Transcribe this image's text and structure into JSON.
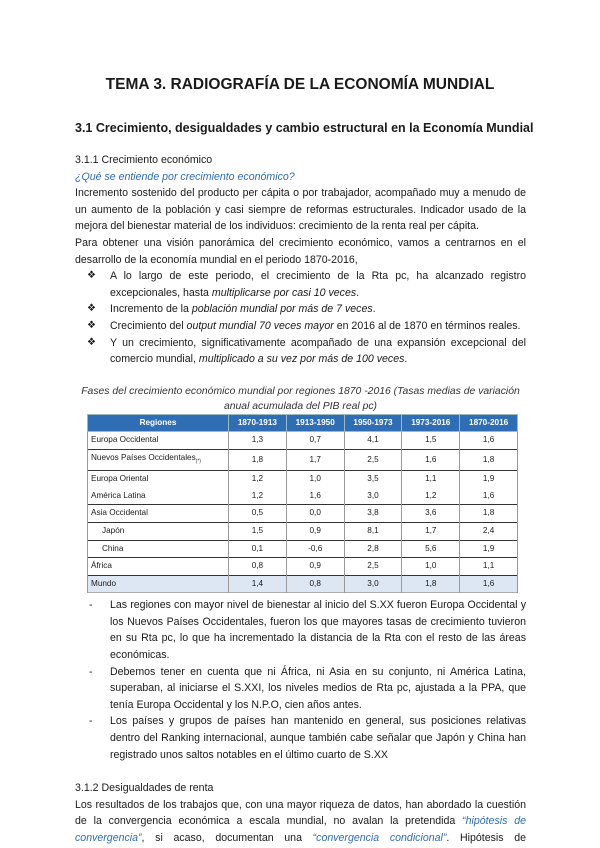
{
  "title": "TEMA 3. RADIOGRAFÍA DE LA ECONOMÍA MUNDIAL",
  "section": "3.1 Crecimiento, desigualdades y cambio estructural en la Economía Mundial",
  "sub1": {
    "heading": "3.1.1 Crecimiento económico",
    "question": "¿Qué se entiende por crecimiento económico?",
    "p1": " Incremento sostenido del producto per cápita o por trabajador, acompañado muy a menudo de un aumento de la población y casi siempre de reformas estructurales. Indicador usado de la mejora del bienestar material de los individuos: crecimiento de la renta real per cápita.",
    "p2": "Para obtener una visión panorámica del crecimiento económico, vamos a centrarnos en el desarrollo de la economía mundial en el periodo 1870-2016,",
    "bullet_marker": "❖",
    "bullets": [
      {
        "a": "A lo largo de este periodo, el crecimiento de la Rta pc, ha alcanzado registro excepcionales, hasta ",
        "i": "multiplicarse por casi 10 veces",
        "b": "."
      },
      {
        "a": "Incremento de la ",
        "i": "población mundial por más de 7 veces",
        "b": "."
      },
      {
        "a": "Crecimiento del ",
        "i": "output mundial 70 veces mayor",
        "b": " en 2016 al de 1870 en términos reales."
      },
      {
        "a": "Y un crecimiento, significativamente acompañado de una expansión excepcional del comercio mundial, ",
        "i": "multiplicado a su vez por más de 100 veces",
        "b": "."
      }
    ],
    "table_caption": "Fases del crecimiento económico mundial por regiones 1870 -2016 (Tasas medias de variación anual acumulada del PIB real pc)",
    "table": {
      "headers": [
        "Regiones",
        "1870-1913",
        "1913-1950",
        "1950-1973",
        "1973-2016",
        "1870-2016"
      ],
      "rows": [
        [
          "Europa Occidental",
          "1,3",
          "0,7",
          "4,1",
          "1,5",
          "1,6"
        ],
        [
          "Nuevos Países Occidentales",
          "1,8",
          "1,7",
          "2,5",
          "1,6",
          "1,8"
        ],
        [
          "Europa Oriental",
          "1,2",
          "1,0",
          "3,5",
          "1,1",
          "1,9"
        ],
        [
          "América Latina",
          "1,2",
          "1,6",
          "3,0",
          "1,2",
          "1,6"
        ],
        [
          "Asia Occidental",
          "0,5",
          "0,0",
          "3,8",
          "3,6",
          "1,8"
        ],
        [
          "Japón",
          "1,5",
          "0,9",
          "8,1",
          "1,7",
          "2,4"
        ],
        [
          "China",
          "0,1",
          "-0,6",
          "2,8",
          "5,6",
          "1,9"
        ],
        [
          "África",
          "0,8",
          "0,9",
          "2,5",
          "1,0",
          "1,1"
        ],
        [
          "Mundo",
          "1,4",
          "0,8",
          "3,0",
          "1,8",
          "1,6"
        ]
      ],
      "footnote_mark": "(*)"
    },
    "dash_marker": "-",
    "dashes": [
      "Las regiones con mayor nivel de bienestar al inicio del S.XX fueron Europa Occidental y los Nuevos Países Occidentales, fueron los que mayores tasas de crecimiento tuvieron en su Rta pc, lo que ha incrementado la distancia de la Rta con el resto de las áreas económicas.",
      "Debemos tener en cuenta que ni África, ni Asia en su conjunto, ni América Latina, superaban, al iniciarse el S.XXI, los niveles medios de Rta pc, ajustada a la PPA, que tenía Europa Occidental y los N.P.O, cien años antes.",
      "Los países y grupos de países han mantenido en general, sus posiciones relativas dentro del Ranking internacional, aunque también cabe señalar que Japón y China han registrado unos saltos notables en el último cuarto de S.XX"
    ]
  },
  "sub2": {
    "heading": "3.1.2 Desigualdades de renta",
    "p_a": "Los resultados de los trabajos que, con una mayor riqueza de datos, han abordado la cuestión de la convergencia económica a escala mundial, no avalan la pretendida ",
    "p_q1": "“hipótesis de convergencia”",
    "p_b": ", si acaso, documentan una ",
    "p_q2": "“convergencia condicional”",
    "p_c": ". Hipótesis de convergencia condicional."
  },
  "colors": {
    "accent": "#2e6db4",
    "table_header": "#2f6eb5",
    "mundo_row": "#dde6f3"
  }
}
